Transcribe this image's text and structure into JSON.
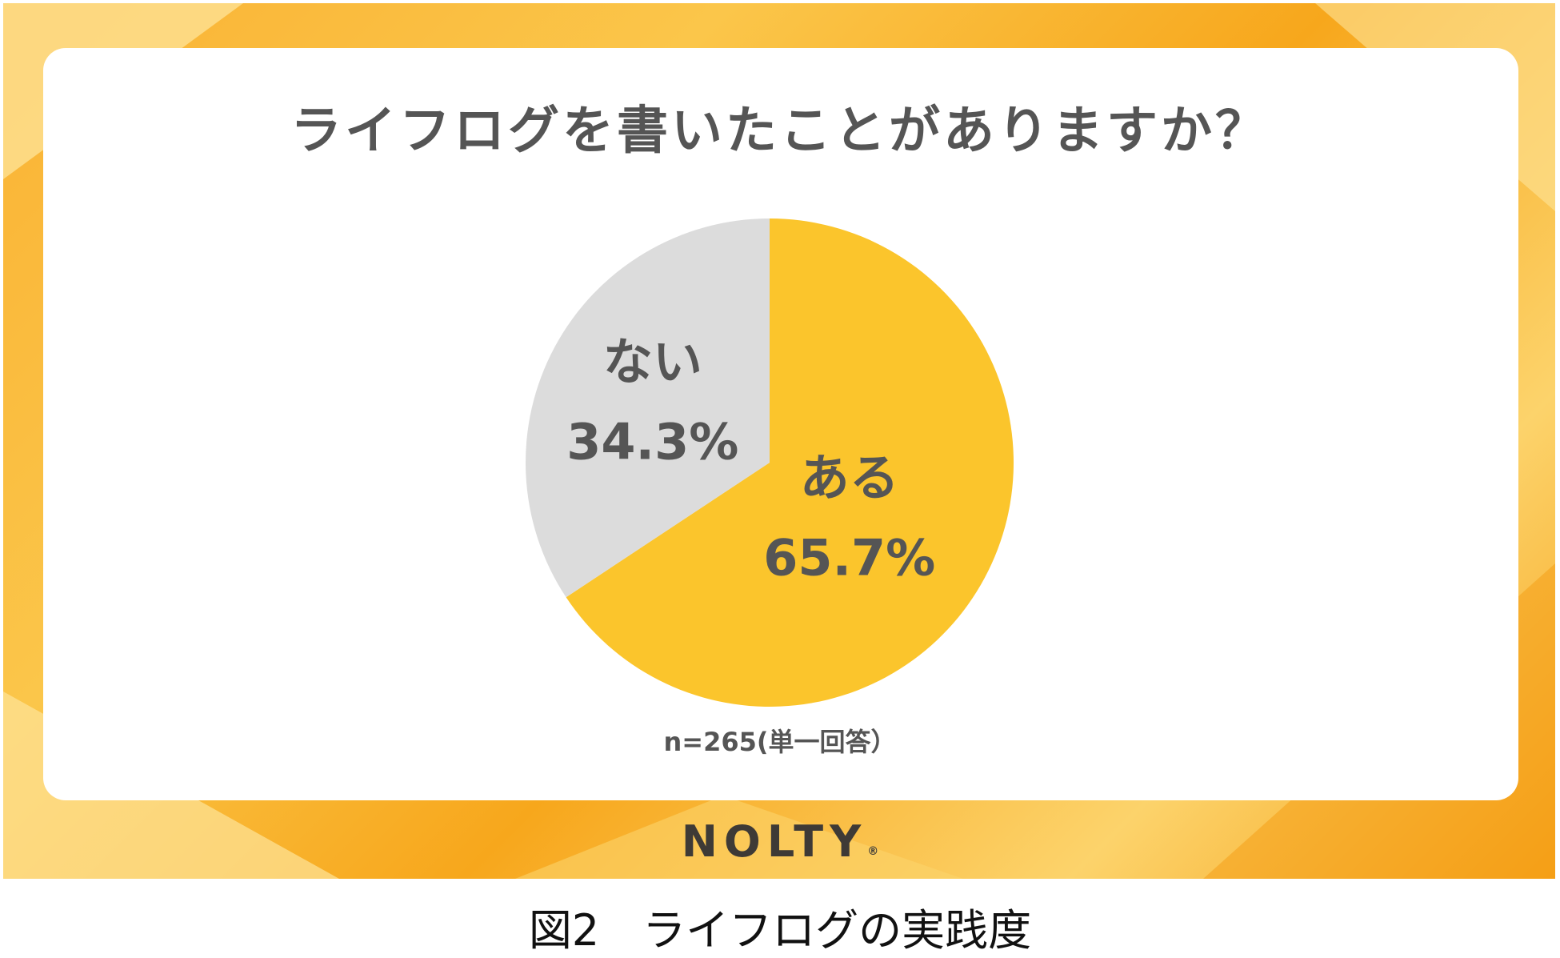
{
  "title": "ライフログを書いたことがありますか？",
  "note": "n=265(単一回答）",
  "brand": "NOLTY",
  "caption": "図2　ライフログの実践度",
  "colors": {
    "yes": "#fbc52c",
    "no": "#dcdcdc",
    "label": "#555555"
  },
  "chart_data": {
    "type": "pie",
    "title": "ライフログを書いたことがありますか？",
    "note": "n=265(単一回答）",
    "slices": [
      {
        "label": "ある",
        "value": 65.7,
        "value_label": "65.7%",
        "color": "#fbc52c"
      },
      {
        "label": "ない",
        "value": 34.3,
        "value_label": "34.3%",
        "color": "#dcdcdc"
      }
    ],
    "start": "12 o'clock",
    "direction": "clockwise"
  }
}
